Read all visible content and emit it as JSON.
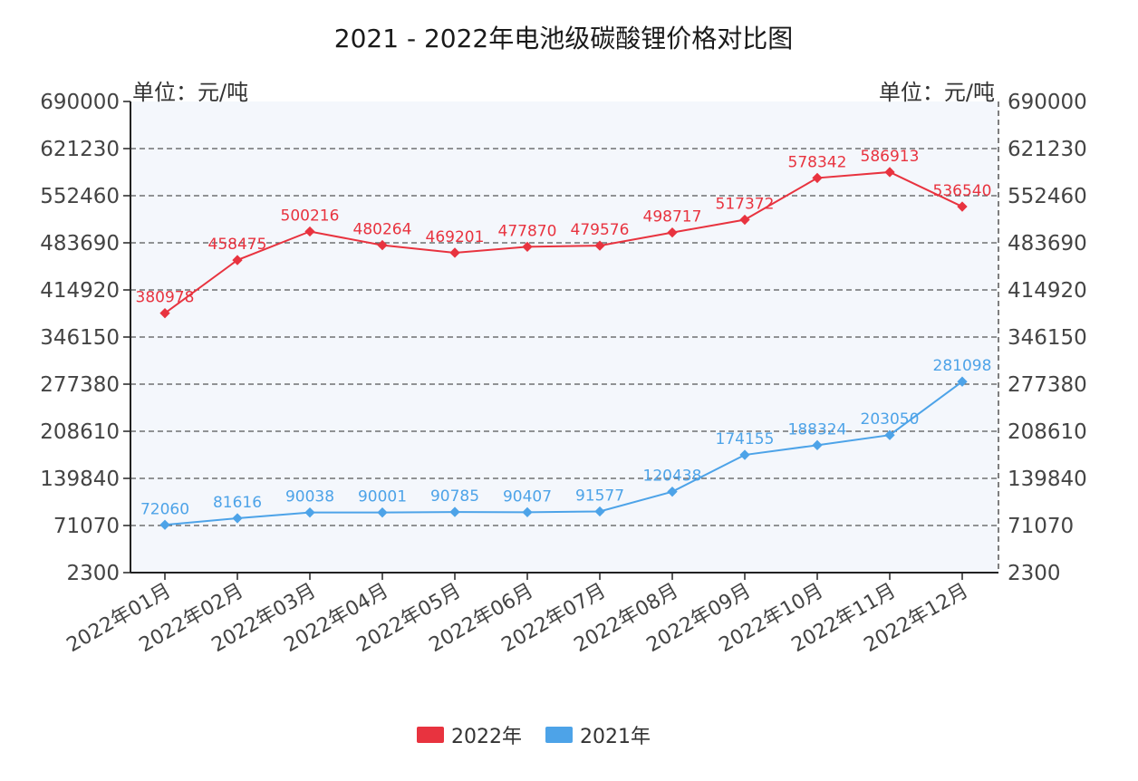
{
  "chart_data": {
    "type": "line",
    "title": "2021 - 2022年电池级碳酸锂价格对比图",
    "unit_left": "单位：元/吨",
    "unit_right": "单位：元/吨",
    "categories": [
      "2022年01月",
      "2022年02月",
      "2022年03月",
      "2022年04月",
      "2022年05月",
      "2022年06月",
      "2022年07月",
      "2022年08月",
      "2022年09月",
      "2022年10月",
      "2022年11月",
      "2022年12月"
    ],
    "yticks": [
      "690000",
      "621230",
      "552460",
      "483690",
      "414920",
      "346150",
      "277380",
      "208610",
      "139840",
      "71070",
      "2300"
    ],
    "ylim": [
      2300,
      690000
    ],
    "grid": true,
    "legend_position": "bottom-center",
    "series": [
      {
        "name": "2022年",
        "color": "#e8333f",
        "values": [
          380978,
          458475,
          500216,
          480264,
          469201,
          477870,
          479576,
          498717,
          517372,
          578342,
          586913,
          536540
        ],
        "labels": [
          "380978",
          "458475",
          "500216",
          "480264",
          "469201",
          "477870",
          "479576",
          "498717",
          "517372",
          "578342",
          "586913",
          "536540"
        ]
      },
      {
        "name": "2021年",
        "color": "#4da3e8",
        "values": [
          72060,
          81616,
          90038,
          90001,
          90785,
          90407,
          91577,
          120438,
          174155,
          188324,
          203050,
          281098
        ],
        "labels": [
          "72060",
          "81616",
          "90038",
          "90001",
          "90785",
          "90407",
          "91577",
          "120438",
          "174155",
          "188324",
          "203050",
          "281098"
        ]
      }
    ]
  }
}
